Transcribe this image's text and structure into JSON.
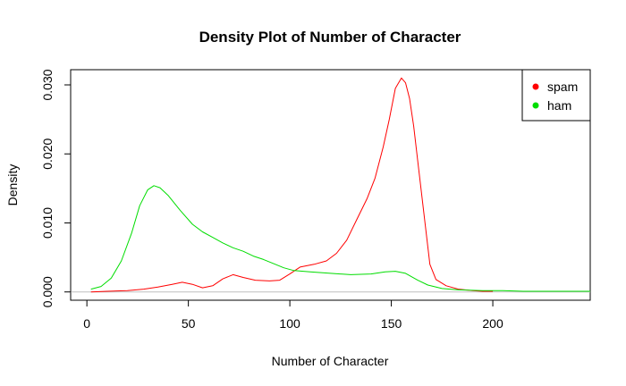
{
  "chart_data": {
    "type": "line",
    "title": "Density Plot of Number of Character",
    "xlabel": "Number of Character",
    "ylabel": "Density",
    "xlim": [
      -8,
      248
    ],
    "ylim": [
      -0.0012,
      0.0322
    ],
    "x_ticks": [
      0,
      50,
      100,
      150,
      200
    ],
    "x_tick_labels": [
      "0",
      "50",
      "100",
      "150",
      "200"
    ],
    "y_ticks": [
      0,
      0.01,
      0.02,
      0.03
    ],
    "y_tick_labels": [
      "0.000",
      "0.010",
      "0.020",
      "0.030"
    ],
    "zero_line": true,
    "grid": false,
    "legend_position": "top-right",
    "series": [
      {
        "name": "spam",
        "color": "#ff0000",
        "points": [
          [
            2,
            0.0
          ],
          [
            10,
            0.0001
          ],
          [
            20,
            0.0002
          ],
          [
            28,
            0.0004
          ],
          [
            35,
            0.0007
          ],
          [
            42,
            0.0011
          ],
          [
            47,
            0.0014
          ],
          [
            52,
            0.0011
          ],
          [
            57,
            0.0006
          ],
          [
            62,
            0.0009
          ],
          [
            67,
            0.0019
          ],
          [
            72,
            0.0025
          ],
          [
            77,
            0.0021
          ],
          [
            83,
            0.0017
          ],
          [
            90,
            0.0016
          ],
          [
            95,
            0.0017
          ],
          [
            100,
            0.0026
          ],
          [
            105,
            0.0036
          ],
          [
            112,
            0.004
          ],
          [
            118,
            0.0045
          ],
          [
            123,
            0.0056
          ],
          [
            128,
            0.0075
          ],
          [
            133,
            0.0105
          ],
          [
            138,
            0.0135
          ],
          [
            142,
            0.0165
          ],
          [
            146,
            0.021
          ],
          [
            149,
            0.025
          ],
          [
            152,
            0.0295
          ],
          [
            155,
            0.031
          ],
          [
            157,
            0.0303
          ],
          [
            159,
            0.028
          ],
          [
            161,
            0.024
          ],
          [
            163,
            0.019
          ],
          [
            166,
            0.0115
          ],
          [
            169,
            0.004
          ],
          [
            172,
            0.0018
          ],
          [
            177,
            0.0009
          ],
          [
            183,
            0.0004
          ],
          [
            190,
            0.0002
          ],
          [
            195,
            0.0001
          ],
          [
            200,
            0.0001
          ]
        ]
      },
      {
        "name": "ham",
        "color": "#00dd00",
        "points": [
          [
            2,
            0.0004
          ],
          [
            7,
            0.0008
          ],
          [
            12,
            0.002
          ],
          [
            17,
            0.0045
          ],
          [
            22,
            0.0085
          ],
          [
            26,
            0.0125
          ],
          [
            30,
            0.0148
          ],
          [
            33,
            0.0154
          ],
          [
            36,
            0.0151
          ],
          [
            40,
            0.014
          ],
          [
            46,
            0.0118
          ],
          [
            52,
            0.0098
          ],
          [
            57,
            0.0087
          ],
          [
            62,
            0.0079
          ],
          [
            67,
            0.0071
          ],
          [
            72,
            0.0064
          ],
          [
            77,
            0.0059
          ],
          [
            82,
            0.0052
          ],
          [
            87,
            0.0047
          ],
          [
            92,
            0.0041
          ],
          [
            97,
            0.0035
          ],
          [
            102,
            0.0031
          ],
          [
            110,
            0.0029
          ],
          [
            120,
            0.0027
          ],
          [
            130,
            0.0025
          ],
          [
            140,
            0.0026
          ],
          [
            147,
            0.0029
          ],
          [
            152,
            0.003
          ],
          [
            157,
            0.0027
          ],
          [
            163,
            0.0017
          ],
          [
            168,
            0.001
          ],
          [
            175,
            0.0005
          ],
          [
            183,
            0.0003
          ],
          [
            195,
            0.0002
          ],
          [
            205,
            0.0002
          ],
          [
            215,
            0.0001
          ],
          [
            230,
            0.0001
          ],
          [
            248,
            0.0001
          ]
        ]
      }
    ]
  }
}
